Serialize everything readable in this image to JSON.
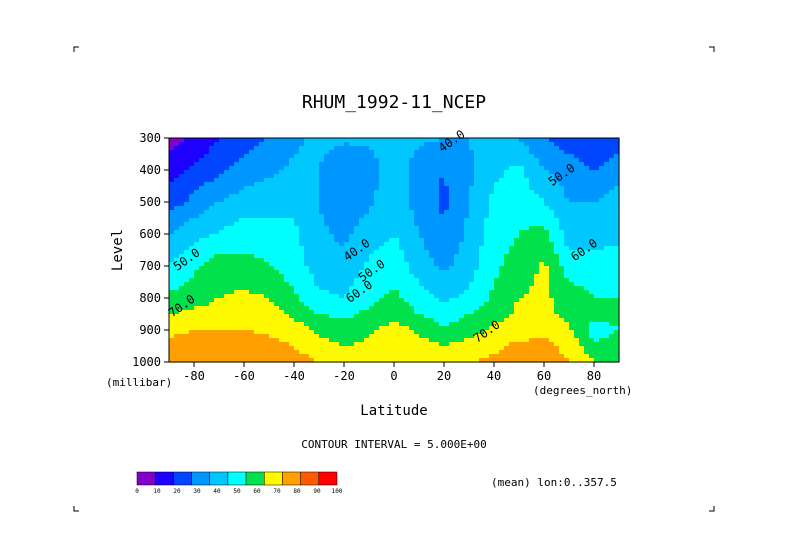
{
  "chart_data": {
    "type": "heatmap",
    "title": "RHUM_1992-11_NCEP",
    "xlabel": "Latitude",
    "ylabel": "Level",
    "x_unit_label": "(degrees_north)",
    "y_unit_label": "(millibar)",
    "xlim": [
      -90,
      90
    ],
    "ylim": [
      1000,
      300
    ],
    "x_ticks": [
      -80,
      -60,
      -40,
      -20,
      0,
      20,
      40,
      60,
      80
    ],
    "y_ticks": [
      300,
      400,
      500,
      600,
      700,
      800,
      900,
      1000
    ],
    "contour_interval_text": "CONTOUR INTERVAL = 5.000E+00",
    "footnote": "(mean) lon:0..357.5",
    "colorbar": {
      "ticks": [
        0,
        10,
        20,
        30,
        40,
        50,
        60,
        70,
        80,
        90,
        100
      ],
      "colors": [
        "#8200c8",
        "#1e00ff",
        "#0046ff",
        "#0096ff",
        "#00c8ff",
        "#00ffff",
        "#00e14b",
        "#fffa00",
        "#ffa000",
        "#ff5a00",
        "#ff0000"
      ]
    },
    "contour_labels": [
      {
        "text": "40.0",
        "x": 24,
        "p": 320
      },
      {
        "text": "50.0",
        "x": 68,
        "p": 425
      },
      {
        "text": "60.0",
        "x": 77,
        "p": 660
      },
      {
        "text": "50.0",
        "x": -82,
        "p": 690
      },
      {
        "text": "40.0",
        "x": -14,
        "p": 660
      },
      {
        "text": "50.0",
        "x": -8,
        "p": 725
      },
      {
        "text": "60.0",
        "x": -13,
        "p": 790
      },
      {
        "text": "70.0",
        "x": -84,
        "p": 835
      },
      {
        "text": "70.0",
        "x": 38,
        "p": 915
      }
    ],
    "levels": [
      300,
      400,
      500,
      600,
      700,
      800,
      850,
      900,
      950,
      1000
    ],
    "latitudes": [
      -90,
      -80,
      -70,
      -60,
      -50,
      -40,
      -30,
      -20,
      -10,
      0,
      10,
      20,
      30,
      40,
      50,
      60,
      70,
      80,
      90
    ],
    "values": [
      [
        5,
        12,
        20,
        26,
        30,
        38,
        43,
        42,
        42,
        44,
        42,
        40,
        40,
        45,
        40,
        30,
        25,
        20,
        25
      ],
      [
        15,
        22,
        28,
        34,
        38,
        42,
        40,
        30,
        35,
        45,
        35,
        30,
        38,
        48,
        52,
        40,
        35,
        30,
        35
      ],
      [
        25,
        33,
        40,
        45,
        46,
        48,
        40,
        32,
        38,
        48,
        35,
        28,
        40,
        52,
        56,
        50,
        40,
        40,
        45
      ],
      [
        40,
        47,
        51,
        55,
        55,
        52,
        42,
        38,
        46,
        50,
        40,
        32,
        42,
        56,
        60,
        64,
        45,
        45,
        48
      ],
      [
        50,
        58,
        65,
        64,
        60,
        55,
        45,
        42,
        52,
        56,
        45,
        38,
        45,
        58,
        64,
        72,
        55,
        55,
        55
      ],
      [
        62,
        66,
        70,
        72,
        70,
        62,
        52,
        50,
        58,
        62,
        55,
        48,
        52,
        62,
        70,
        72,
        65,
        60,
        60
      ],
      [
        70,
        72,
        74,
        75,
        74,
        68,
        60,
        58,
        62,
        66,
        60,
        55,
        60,
        66,
        72,
        72,
        68,
        65,
        62
      ],
      [
        78,
        80,
        80,
        80,
        78,
        75,
        68,
        64,
        68,
        74,
        68,
        62,
        66,
        72,
        76,
        78,
        72,
        55,
        60
      ],
      [
        82,
        85,
        86,
        86,
        84,
        80,
        74,
        70,
        72,
        76,
        74,
        70,
        74,
        78,
        82,
        82,
        78,
        62,
        65
      ],
      [
        85,
        88,
        90,
        88,
        86,
        84,
        80,
        78,
        78,
        80,
        80,
        78,
        80,
        82,
        84,
        84,
        80,
        70,
        70
      ]
    ]
  }
}
